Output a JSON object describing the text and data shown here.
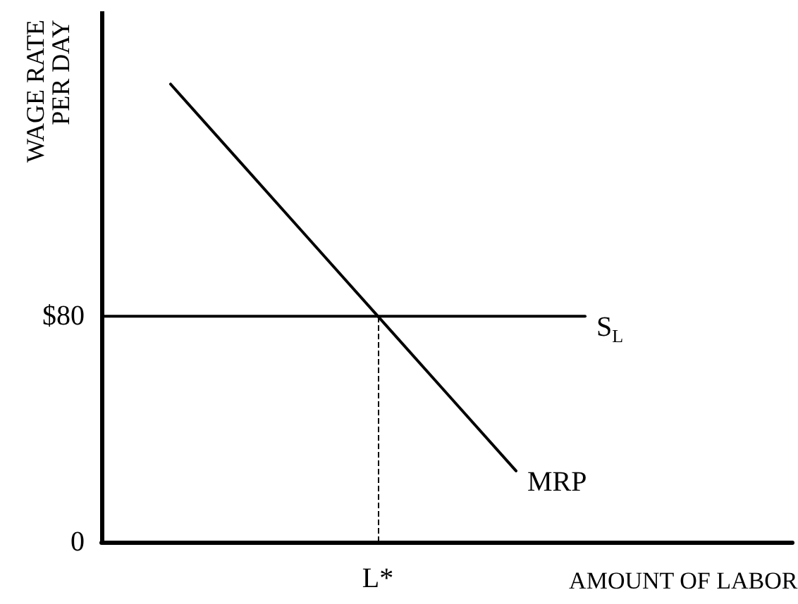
{
  "chart_data": {
    "type": "line",
    "xlabel": "AMOUNT OF LABOR",
    "ylabel": "WAGE RATE\nPER DAY",
    "grid": false,
    "legend": false,
    "marker": "none",
    "categories": [
      null,
      null,
      null,
      null,
      "L*",
      null,
      null,
      null,
      null,
      null,
      null
    ],
    "ylim": [
      0,
      188
    ],
    "yticks": [
      {
        "value": 0,
        "label": "0"
      },
      {
        "value": 80,
        "label": "$80"
      }
    ],
    "ref_lines": [
      {
        "axis": "x",
        "value": "L*",
        "line_style": "dashed",
        "color": "#000000"
      }
    ],
    "series": [
      {
        "name": "MRP",
        "color": "#000000",
        "values": [
          null,
          162.2,
          134.8,
          107.4,
          80,
          52.6,
          25.2,
          null,
          null,
          null,
          null
        ]
      },
      {
        "name": "S$_{L}$",
        "color": "#000000",
        "values": [
          80,
          80,
          80,
          80,
          80,
          80,
          80,
          80,
          null,
          null,
          null
        ]
      }
    ]
  }
}
